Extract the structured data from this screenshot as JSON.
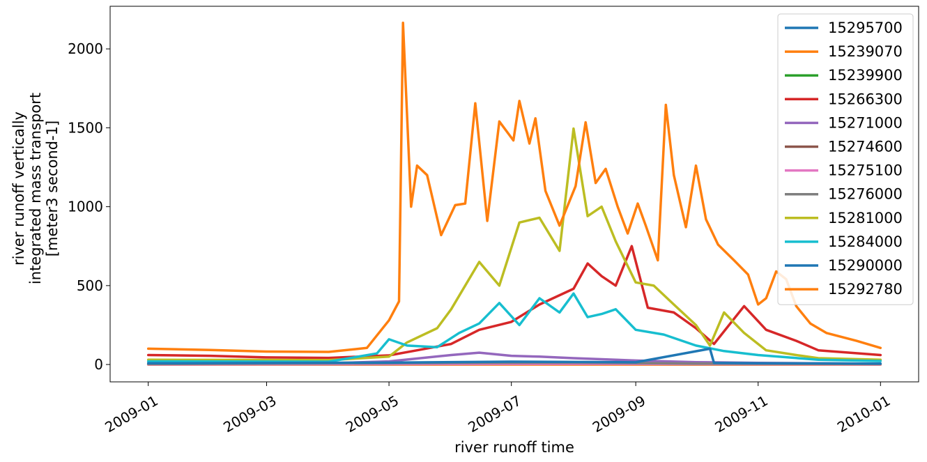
{
  "chart_data": {
    "type": "line",
    "xlabel": "river runoff time",
    "ylabel": [
      "river runoff vertically",
      "integrated mass transport",
      "[meter3 second-1]"
    ],
    "xlim": [
      "2008-12-13",
      "2010-01-20"
    ],
    "ylim": [
      -110,
      2270
    ],
    "x_ticks": [
      "2009-01",
      "2009-03",
      "2009-05",
      "2009-07",
      "2009-09",
      "2009-11",
      "2010-01"
    ],
    "y_ticks": [
      0,
      500,
      1000,
      1500,
      2000
    ],
    "legend_position": "top-right",
    "grid": false,
    "series": [
      {
        "name": "15295700",
        "color": "#1f77b4",
        "points": [
          [
            "2009-01-01",
            2
          ],
          [
            "2009-05-01",
            4
          ],
          [
            "2009-07-01",
            6
          ],
          [
            "2009-09-01",
            5
          ],
          [
            "2009-11-01",
            3
          ],
          [
            "2010-01-01",
            2
          ]
        ]
      },
      {
        "name": "15239070",
        "color": "#ff7f0e",
        "points": [
          [
            "2009-01-01",
            0
          ],
          [
            "2010-01-01",
            0
          ]
        ]
      },
      {
        "name": "15239900",
        "color": "#2ca02c",
        "points": [
          [
            "2009-01-01",
            2
          ],
          [
            "2009-05-01",
            3
          ],
          [
            "2009-07-01",
            8
          ],
          [
            "2009-09-01",
            6
          ],
          [
            "2009-11-01",
            3
          ],
          [
            "2010-01-01",
            2
          ]
        ]
      },
      {
        "name": "15266300",
        "color": "#d62728",
        "points": [
          [
            "2009-01-01",
            60
          ],
          [
            "2009-02-01",
            55
          ],
          [
            "2009-03-01",
            45
          ],
          [
            "2009-04-01",
            42
          ],
          [
            "2009-05-01",
            58
          ],
          [
            "2009-05-15",
            90
          ],
          [
            "2009-06-01",
            130
          ],
          [
            "2009-06-15",
            220
          ],
          [
            "2009-07-01",
            270
          ],
          [
            "2009-07-15",
            380
          ],
          [
            "2009-08-01",
            480
          ],
          [
            "2009-08-08",
            640
          ],
          [
            "2009-08-15",
            560
          ],
          [
            "2009-08-22",
            500
          ],
          [
            "2009-08-30",
            750
          ],
          [
            "2009-09-07",
            360
          ],
          [
            "2009-09-20",
            330
          ],
          [
            "2009-10-01",
            230
          ],
          [
            "2009-10-10",
            130
          ],
          [
            "2009-10-25",
            370
          ],
          [
            "2009-11-05",
            220
          ],
          [
            "2009-11-20",
            150
          ],
          [
            "2009-12-01",
            90
          ],
          [
            "2010-01-01",
            60
          ]
        ]
      },
      {
        "name": "15271000",
        "color": "#9467bd",
        "points": [
          [
            "2009-01-01",
            5
          ],
          [
            "2009-04-01",
            8
          ],
          [
            "2009-05-01",
            20
          ],
          [
            "2009-06-01",
            60
          ],
          [
            "2009-06-15",
            75
          ],
          [
            "2009-07-01",
            55
          ],
          [
            "2009-07-15",
            50
          ],
          [
            "2009-08-01",
            40
          ],
          [
            "2009-09-01",
            25
          ],
          [
            "2009-10-01",
            15
          ],
          [
            "2009-11-01",
            10
          ],
          [
            "2010-01-01",
            5
          ]
        ]
      },
      {
        "name": "15274600",
        "color": "#8c564b",
        "points": [
          [
            "2009-01-01",
            1
          ],
          [
            "2009-06-01",
            3
          ],
          [
            "2009-08-01",
            4
          ],
          [
            "2010-01-01",
            1
          ]
        ]
      },
      {
        "name": "15275100",
        "color": "#e377c2",
        "points": [
          [
            "2009-01-01",
            1
          ],
          [
            "2009-06-01",
            4
          ],
          [
            "2009-08-01",
            5
          ],
          [
            "2010-01-01",
            1
          ]
        ]
      },
      {
        "name": "15276000",
        "color": "#7f7f7f",
        "points": [
          [
            "2009-01-01",
            3
          ],
          [
            "2009-06-01",
            10
          ],
          [
            "2009-08-01",
            12
          ],
          [
            "2009-10-01",
            6
          ],
          [
            "2010-01-01",
            3
          ]
        ]
      },
      {
        "name": "15281000",
        "color": "#bcbd22",
        "points": [
          [
            "2009-01-01",
            30
          ],
          [
            "2009-04-01",
            28
          ],
          [
            "2009-05-01",
            50
          ],
          [
            "2009-05-10",
            140
          ],
          [
            "2009-05-25",
            230
          ],
          [
            "2009-06-01",
            350
          ],
          [
            "2009-06-15",
            650
          ],
          [
            "2009-06-25",
            500
          ],
          [
            "2009-07-05",
            900
          ],
          [
            "2009-07-15",
            930
          ],
          [
            "2009-07-25",
            720
          ],
          [
            "2009-08-01",
            1495
          ],
          [
            "2009-08-08",
            940
          ],
          [
            "2009-08-15",
            1000
          ],
          [
            "2009-08-22",
            780
          ],
          [
            "2009-09-01",
            520
          ],
          [
            "2009-09-10",
            500
          ],
          [
            "2009-09-20",
            380
          ],
          [
            "2009-10-01",
            250
          ],
          [
            "2009-10-08",
            120
          ],
          [
            "2009-10-15",
            330
          ],
          [
            "2009-10-25",
            200
          ],
          [
            "2009-11-05",
            90
          ],
          [
            "2009-11-20",
            60
          ],
          [
            "2009-12-01",
            40
          ],
          [
            "2010-01-01",
            30
          ]
        ]
      },
      {
        "name": "15284000",
        "color": "#17becf",
        "points": [
          [
            "2009-01-01",
            20
          ],
          [
            "2009-04-01",
            18
          ],
          [
            "2009-04-25",
            70
          ],
          [
            "2009-05-01",
            160
          ],
          [
            "2009-05-10",
            120
          ],
          [
            "2009-05-25",
            110
          ],
          [
            "2009-06-05",
            200
          ],
          [
            "2009-06-15",
            260
          ],
          [
            "2009-06-25",
            390
          ],
          [
            "2009-07-05",
            250
          ],
          [
            "2009-07-15",
            420
          ],
          [
            "2009-07-25",
            330
          ],
          [
            "2009-08-01",
            450
          ],
          [
            "2009-08-08",
            300
          ],
          [
            "2009-08-15",
            320
          ],
          [
            "2009-08-22",
            350
          ],
          [
            "2009-09-01",
            220
          ],
          [
            "2009-09-15",
            190
          ],
          [
            "2009-10-01",
            120
          ],
          [
            "2009-10-15",
            85
          ],
          [
            "2009-11-01",
            60
          ],
          [
            "2009-12-01",
            30
          ],
          [
            "2010-01-01",
            22
          ]
        ]
      },
      {
        "name": "15290000",
        "color": "#1f77b4",
        "points": [
          [
            "2009-01-01",
            8
          ],
          [
            "2009-05-01",
            12
          ],
          [
            "2009-07-01",
            18
          ],
          [
            "2009-09-01",
            14
          ],
          [
            "2009-10-08",
            100
          ],
          [
            "2009-10-10",
            10
          ],
          [
            "2009-11-01",
            8
          ],
          [
            "2010-01-01",
            6
          ]
        ]
      },
      {
        "name": "15292780",
        "color": "#ff7f0e",
        "points": [
          [
            "2009-01-01",
            100
          ],
          [
            "2009-02-01",
            92
          ],
          [
            "2009-03-01",
            82
          ],
          [
            "2009-04-01",
            80
          ],
          [
            "2009-04-20",
            105
          ],
          [
            "2009-05-01",
            280
          ],
          [
            "2009-05-06",
            400
          ],
          [
            "2009-05-08",
            2165
          ],
          [
            "2009-05-12",
            1000
          ],
          [
            "2009-05-15",
            1260
          ],
          [
            "2009-05-20",
            1200
          ],
          [
            "2009-05-27",
            820
          ],
          [
            "2009-06-03",
            1010
          ],
          [
            "2009-06-08",
            1020
          ],
          [
            "2009-06-13",
            1655
          ],
          [
            "2009-06-19",
            910
          ],
          [
            "2009-06-25",
            1540
          ],
          [
            "2009-07-02",
            1420
          ],
          [
            "2009-07-05",
            1670
          ],
          [
            "2009-07-10",
            1400
          ],
          [
            "2009-07-13",
            1560
          ],
          [
            "2009-07-18",
            1100
          ],
          [
            "2009-07-25",
            880
          ],
          [
            "2009-08-02",
            1130
          ],
          [
            "2009-08-07",
            1535
          ],
          [
            "2009-08-12",
            1150
          ],
          [
            "2009-08-17",
            1240
          ],
          [
            "2009-08-23",
            1000
          ],
          [
            "2009-08-28",
            830
          ],
          [
            "2009-09-02",
            1020
          ],
          [
            "2009-09-06",
            880
          ],
          [
            "2009-09-12",
            660
          ],
          [
            "2009-09-16",
            1645
          ],
          [
            "2009-09-20",
            1200
          ],
          [
            "2009-09-26",
            870
          ],
          [
            "2009-10-01",
            1260
          ],
          [
            "2009-10-06",
            920
          ],
          [
            "2009-10-12",
            760
          ],
          [
            "2009-10-20",
            660
          ],
          [
            "2009-10-27",
            570
          ],
          [
            "2009-11-01",
            380
          ],
          [
            "2009-11-05",
            420
          ],
          [
            "2009-11-10",
            590
          ],
          [
            "2009-11-15",
            540
          ],
          [
            "2009-11-20",
            370
          ],
          [
            "2009-11-27",
            260
          ],
          [
            "2009-12-05",
            200
          ],
          [
            "2009-12-20",
            150
          ],
          [
            "2010-01-01",
            105
          ]
        ]
      }
    ]
  }
}
